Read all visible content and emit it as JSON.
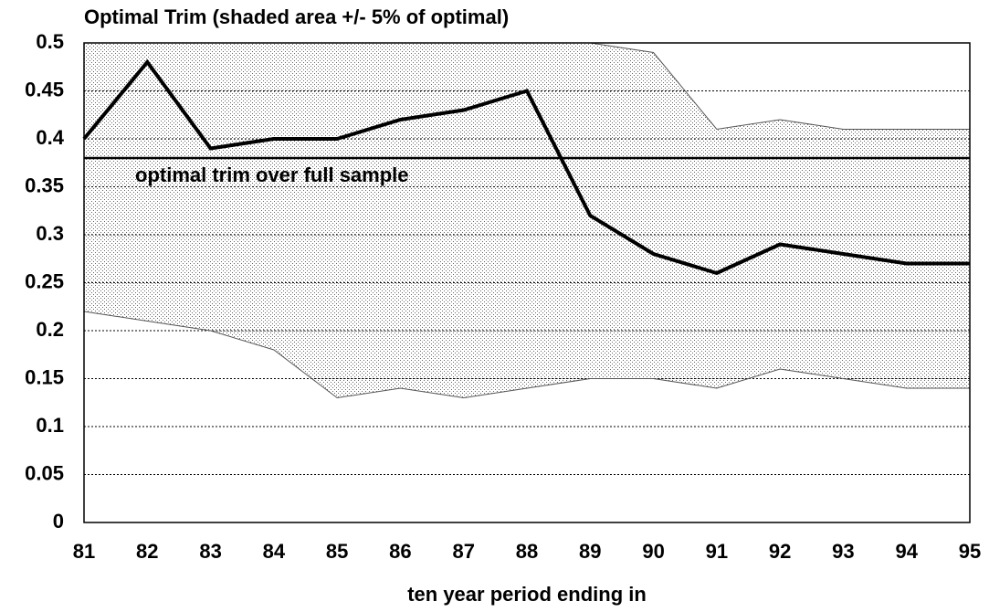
{
  "chart_data": {
    "type": "line",
    "title": "Optimal Trim (shaded area +/-  5% of optimal)",
    "xlabel": "ten year period ending in",
    "x": [
      81,
      82,
      83,
      84,
      85,
      86,
      87,
      88,
      89,
      90,
      91,
      92,
      93,
      94,
      95
    ],
    "xlim": [
      81,
      95
    ],
    "xticks": [
      81,
      82,
      83,
      84,
      85,
      86,
      87,
      88,
      89,
      90,
      91,
      92,
      93,
      94,
      95
    ],
    "ylim": [
      0,
      0.5
    ],
    "yticks": [
      0,
      0.05,
      0.1,
      0.15,
      0.2,
      0.25,
      0.3,
      0.35,
      0.4,
      0.45,
      0.5
    ],
    "grid": true,
    "series": [
      {
        "color": "#000000",
        "values": [
          0.4,
          0.48,
          0.39,
          0.4,
          0.4,
          0.42,
          0.43,
          0.45,
          0.32,
          0.28,
          0.26,
          0.29,
          0.28,
          0.27,
          0.27
        ]
      }
    ],
    "band": {
      "color": "#555555",
      "upper": [
        0.5,
        0.5,
        0.5,
        0.5,
        0.5,
        0.5,
        0.5,
        0.5,
        0.5,
        0.49,
        0.41,
        0.42,
        0.41,
        0.41,
        0.41
      ],
      "lower": [
        0.22,
        0.21,
        0.2,
        0.18,
        0.13,
        0.14,
        0.13,
        0.14,
        0.15,
        0.15,
        0.14,
        0.16,
        0.15,
        0.14,
        0.14
      ]
    },
    "hline": {
      "value": 0.38,
      "label": "optimal trim over full sample"
    }
  }
}
